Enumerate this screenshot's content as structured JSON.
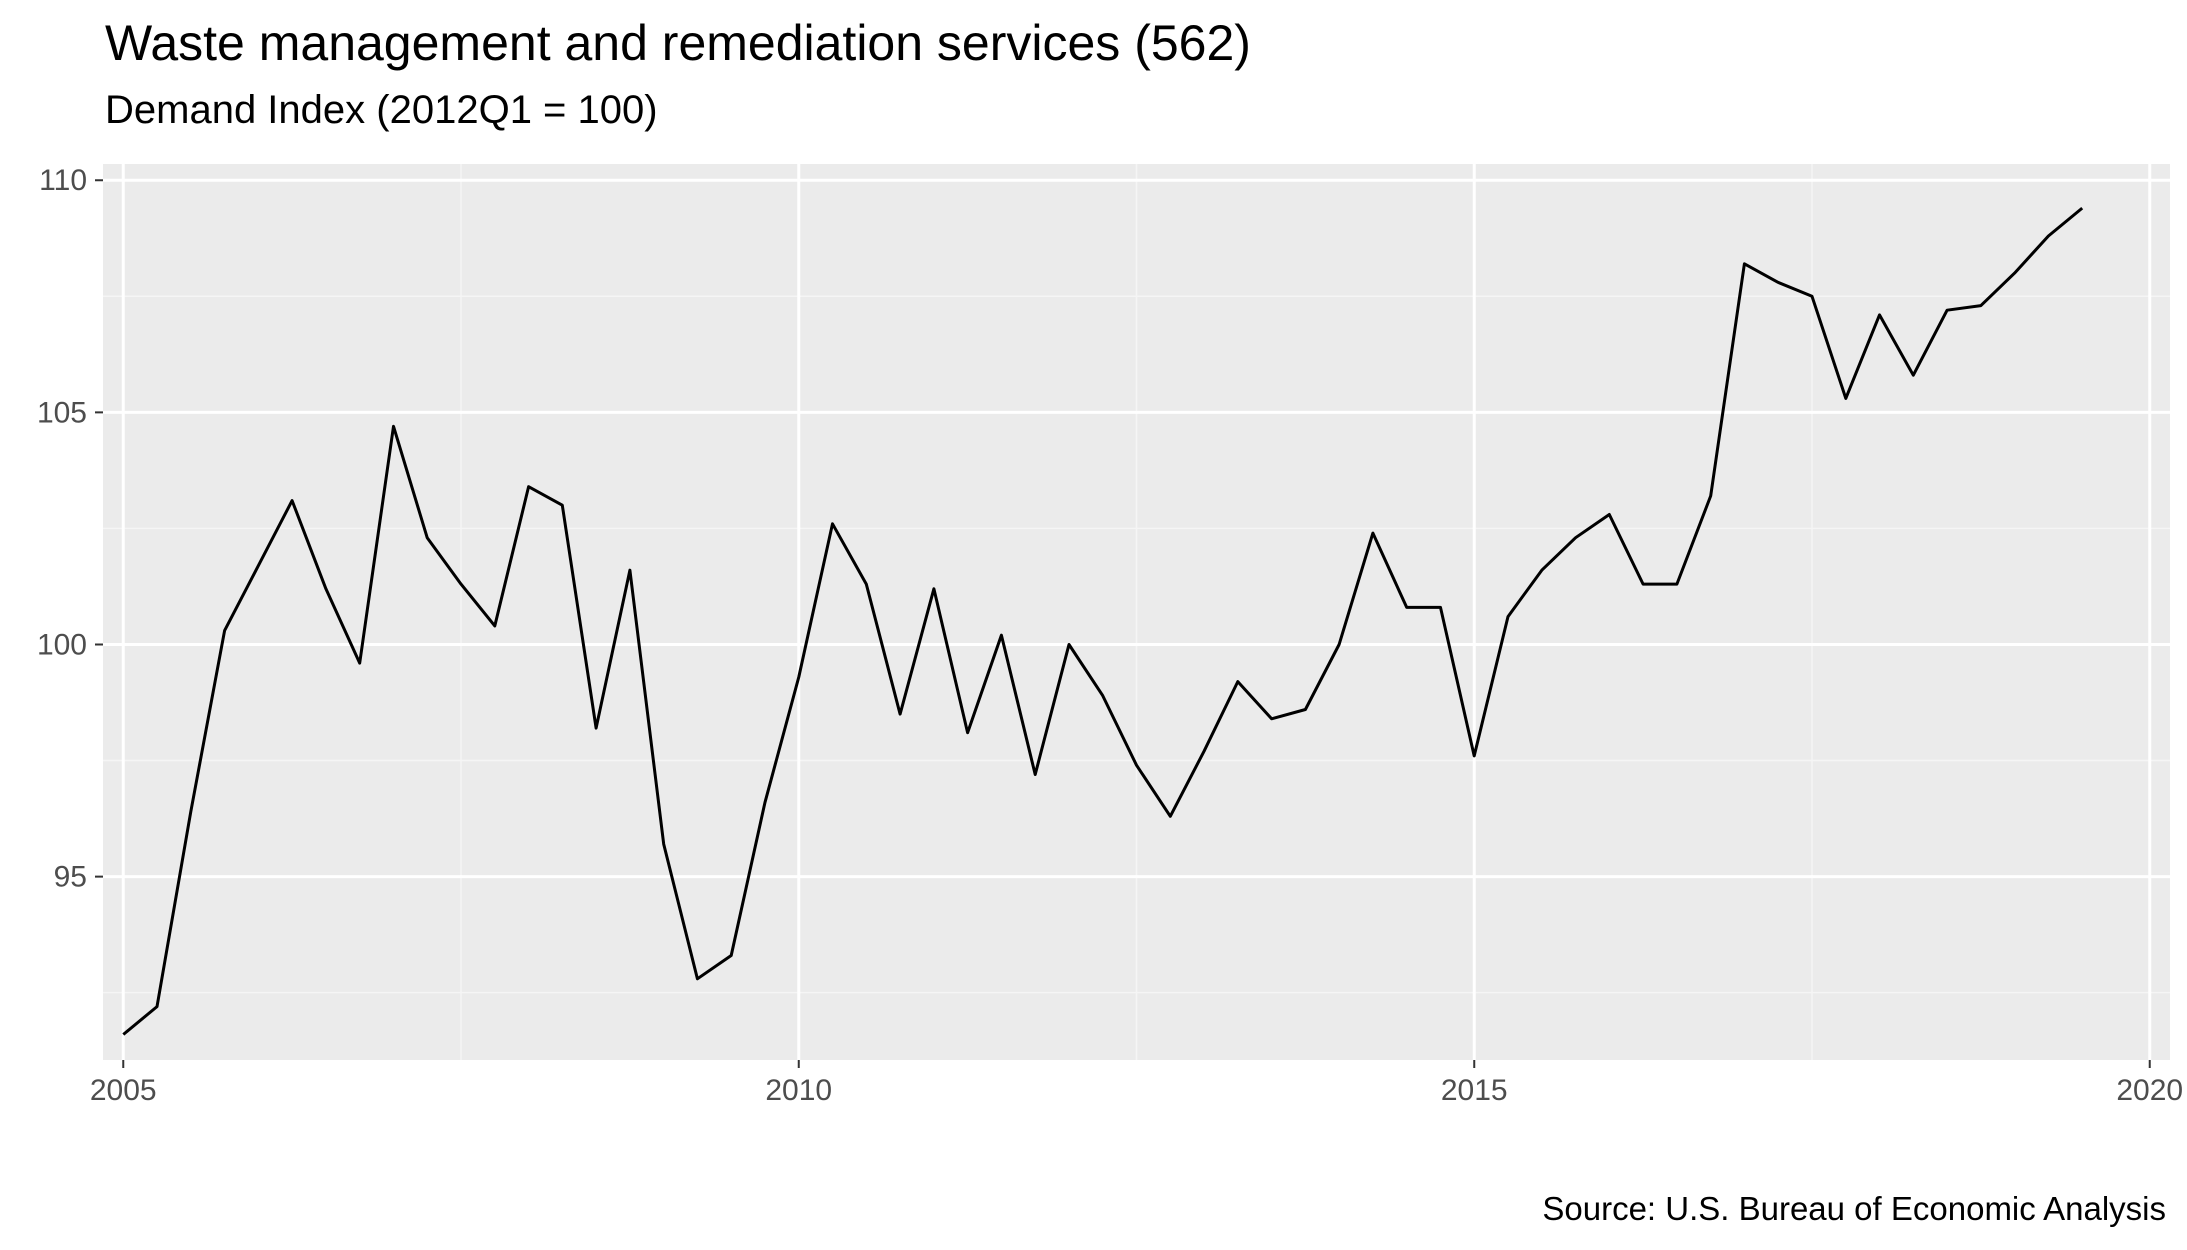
{
  "title": "Waste management and remediation services (562)",
  "subtitle": "Demand Index (2012Q1 = 100)",
  "caption": "Source: U.S. Bureau of Economic Analysis",
  "colors": {
    "panel_background": "#ebebeb",
    "grid_major": "#ffffff",
    "grid_minor": "#f5f5f5",
    "line": "#000000",
    "tick_text": "#4d4d4d"
  },
  "chart_data": {
    "type": "line",
    "title": "Waste management and remediation services (562)",
    "subtitle": "Demand Index (2012Q1 = 100)",
    "xlabel": "",
    "ylabel": "",
    "xlim": [
      2004.85,
      2020.15
    ],
    "ylim": [
      91.05,
      110.35
    ],
    "x_ticks": [
      2005,
      2010,
      2015,
      2020
    ],
    "x_tick_labels": [
      "2005",
      "2010",
      "2015",
      "2020"
    ],
    "y_ticks": [
      95,
      100,
      105,
      110
    ],
    "y_tick_labels": [
      "95",
      "100",
      "105",
      "110"
    ],
    "grid": true,
    "legend": "none",
    "series": [
      {
        "x": [
          2005.0,
          2005.25,
          2005.5,
          2005.75,
          2006.0,
          2006.25,
          2006.5,
          2006.75,
          2007.0,
          2007.25,
          2007.5,
          2007.75,
          2008.0,
          2008.25,
          2008.5,
          2008.75,
          2009.0,
          2009.25,
          2009.5,
          2009.75,
          2010.0,
          2010.25,
          2010.5,
          2010.75,
          2011.0,
          2011.25,
          2011.5,
          2011.75,
          2012.0,
          2012.25,
          2012.5,
          2012.75,
          2013.0,
          2013.25,
          2013.5,
          2013.75,
          2014.0,
          2014.25,
          2014.5,
          2014.75,
          2015.0,
          2015.25,
          2015.5,
          2015.75,
          2016.0,
          2016.25,
          2016.5,
          2016.75,
          2017.0,
          2017.25,
          2017.5,
          2017.75,
          2018.0,
          2018.25,
          2018.5,
          2018.75,
          2019.0,
          2019.25,
          2019.5
        ],
        "values": [
          91.6,
          92.2,
          96.4,
          100.3,
          101.7,
          103.1,
          101.2,
          99.6,
          104.7,
          102.3,
          101.3,
          100.4,
          103.4,
          103.0,
          98.2,
          101.6,
          95.7,
          92.8,
          93.3,
          96.6,
          99.3,
          102.6,
          101.3,
          98.5,
          101.2,
          98.1,
          100.2,
          97.2,
          100.0,
          98.9,
          97.4,
          96.3,
          97.7,
          99.2,
          98.4,
          98.6,
          100.0,
          102.4,
          100.8,
          100.8,
          97.6,
          100.6,
          101.6,
          102.3,
          102.8,
          101.3,
          101.3,
          103.2,
          108.2,
          107.8,
          107.5,
          105.3,
          107.1,
          105.8,
          107.2,
          107.3,
          108.0,
          108.8,
          109.4
        ]
      }
    ]
  }
}
